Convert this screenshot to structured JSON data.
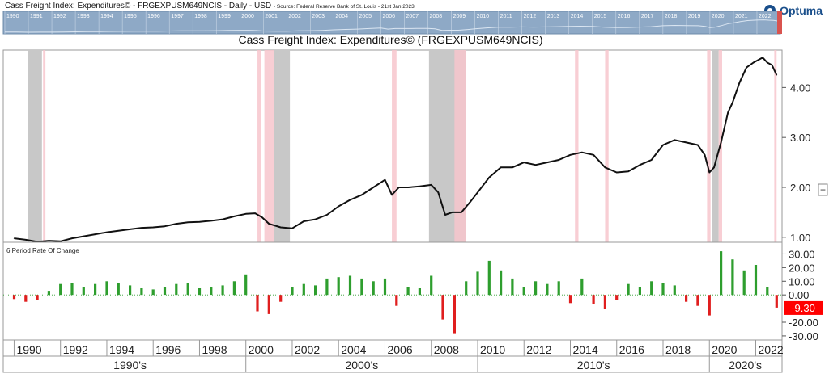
{
  "header": {
    "title": "Cass Freight Index: Expenditures© - FRGEXPUSM649NCIS - Daily - USD",
    "source": "- Source: Federal Reserve Bank of St. Louis - 21st Jan 2023"
  },
  "logo": {
    "text": "Optuma"
  },
  "plus_label": "+",
  "colors": {
    "line": "#111111",
    "up_bar": "#2e9e2e",
    "down_bar": "#e01e1e",
    "recession_gray": "#c8c8c8",
    "recession_pink": "#f7c6cc",
    "overview_bg": "#8ea9c6",
    "last_value_bg": "#ff0000"
  },
  "chart_data": [
    {
      "type": "line",
      "title": "Cass Freight Index: Expenditures© (FRGEXPUSM649NCIS)",
      "yticks": [
        "1.00",
        "2.00",
        "3.00",
        "4.00"
      ],
      "ylim": [
        0.9,
        4.75
      ],
      "xlim": [
        1989.6,
        2023.1
      ],
      "grid": false,
      "series": [
        {
          "x": [
            1990.0,
            1990.5,
            1991.0,
            1991.5,
            1992.0,
            1992.5,
            1993.0,
            1993.5,
            1994.0,
            1994.5,
            1995.0,
            1995.5,
            1996.0,
            1996.5,
            1997.0,
            1997.5,
            1998.0,
            1998.5,
            1999.0,
            1999.5,
            2000.0,
            2000.4,
            2000.7,
            2001.0,
            2001.5,
            2002.0,
            2002.5,
            2003.0,
            2003.5,
            2004.0,
            2004.5,
            2005.0,
            2005.5,
            2006.0,
            2006.3,
            2006.6,
            2007.0,
            2007.5,
            2008.0,
            2008.3,
            2008.6,
            2008.9,
            2009.3,
            2009.7,
            2010.0,
            2010.5,
            2011.0,
            2011.5,
            2012.0,
            2012.5,
            2013.0,
            2013.5,
            2014.0,
            2014.5,
            2015.0,
            2015.5,
            2016.0,
            2016.5,
            2017.0,
            2017.5,
            2018.0,
            2018.5,
            2019.0,
            2019.5,
            2019.8,
            2020.0,
            2020.2,
            2020.5,
            2020.8,
            2021.0,
            2021.3,
            2021.6,
            2021.9,
            2022.1,
            2022.3,
            2022.5,
            2022.7,
            2022.9
          ],
          "y": [
            0.98,
            0.95,
            0.91,
            0.93,
            0.92,
            0.98,
            1.02,
            1.06,
            1.1,
            1.13,
            1.16,
            1.19,
            1.2,
            1.22,
            1.27,
            1.3,
            1.31,
            1.33,
            1.36,
            1.42,
            1.47,
            1.48,
            1.4,
            1.27,
            1.2,
            1.18,
            1.32,
            1.36,
            1.45,
            1.62,
            1.75,
            1.85,
            2.0,
            2.15,
            1.85,
            2.0,
            2.0,
            2.02,
            2.05,
            1.9,
            1.45,
            1.5,
            1.5,
            1.72,
            1.9,
            2.2,
            2.4,
            2.4,
            2.5,
            2.45,
            2.5,
            2.55,
            2.65,
            2.7,
            2.65,
            2.4,
            2.3,
            2.32,
            2.45,
            2.55,
            2.85,
            2.95,
            2.9,
            2.85,
            2.65,
            2.3,
            2.4,
            2.9,
            3.5,
            3.7,
            4.1,
            4.4,
            4.5,
            4.55,
            4.6,
            4.5,
            4.45,
            4.25
          ]
        }
      ]
    },
    {
      "type": "bar",
      "title": "6 Period Rate Of Change",
      "yticks": [
        "30.00",
        "20.00",
        "10.00",
        "0.00",
        "-20.00",
        "-30.00"
      ],
      "ylim": [
        -33,
        35
      ],
      "last_value": "-9.30",
      "series": [
        {
          "x": [
            1990.0,
            1990.5,
            1991.0,
            1991.5,
            1992.0,
            1992.5,
            1993.0,
            1993.5,
            1994.0,
            1994.5,
            1995.0,
            1995.5,
            1996.0,
            1996.5,
            1997.0,
            1997.5,
            1998.0,
            1998.5,
            1999.0,
            1999.5,
            2000.0,
            2000.5,
            2001.0,
            2001.5,
            2002.0,
            2002.5,
            2003.0,
            2003.5,
            2004.0,
            2004.5,
            2005.0,
            2005.5,
            2006.0,
            2006.5,
            2007.0,
            2007.5,
            2008.0,
            2008.5,
            2009.0,
            2009.5,
            2010.0,
            2010.5,
            2011.0,
            2011.5,
            2012.0,
            2012.5,
            2013.0,
            2013.5,
            2014.0,
            2014.5,
            2015.0,
            2015.5,
            2016.0,
            2016.5,
            2017.0,
            2017.5,
            2018.0,
            2018.5,
            2019.0,
            2019.5,
            2020.0,
            2020.5,
            2021.0,
            2021.5,
            2022.0,
            2022.5,
            2022.9
          ],
          "y": [
            -3,
            -5,
            -4,
            3,
            8,
            9,
            6,
            8,
            10,
            9,
            7,
            5,
            4,
            6,
            8,
            9,
            5,
            6,
            7,
            10,
            15,
            -12,
            -14,
            -5,
            6,
            8,
            7,
            12,
            13,
            14,
            12,
            10,
            12,
            -8,
            6,
            5,
            14,
            -18,
            -28,
            10,
            17,
            25,
            18,
            12,
            6,
            10,
            8,
            10,
            -6,
            12,
            -7,
            -10,
            -4,
            8,
            6,
            10,
            9,
            7,
            -5,
            -8,
            -15,
            32,
            26,
            18,
            22,
            6,
            -9.3
          ]
        }
      ]
    }
  ],
  "recessions": {
    "gray": [
      [
        1990.6,
        1991.2
      ],
      [
        2001.2,
        2001.9
      ],
      [
        2007.9,
        2009.5
      ],
      [
        2020.1,
        2020.4
      ]
    ],
    "pink": [
      [
        1991.25,
        1991.35
      ],
      [
        2000.5,
        2000.65
      ],
      [
        2000.8,
        2001.2
      ],
      [
        2006.3,
        2006.5
      ],
      [
        2009.0,
        2009.5
      ],
      [
        2014.2,
        2014.35
      ],
      [
        2015.5,
        2015.65
      ],
      [
        2019.9,
        2020.05
      ],
      [
        2020.4,
        2020.55
      ],
      [
        2022.8,
        2022.9
      ]
    ]
  },
  "overview": {
    "years": [
      "1990",
      "1991",
      "1992",
      "1993",
      "1994",
      "1995",
      "1996",
      "1997",
      "1998",
      "1999",
      "2000",
      "2001",
      "2002",
      "2003",
      "2004",
      "2005",
      "2006",
      "2007",
      "2008",
      "2009",
      "2010",
      "2011",
      "2012",
      "2013",
      "2014",
      "2015",
      "2016",
      "2017",
      "2018",
      "2019",
      "2020",
      "2021",
      "2022"
    ]
  },
  "x_axis": {
    "years": [
      "1990",
      "1992",
      "1994",
      "1996",
      "1998",
      "2000",
      "2002",
      "2004",
      "2006",
      "2008",
      "2010",
      "2012",
      "2014",
      "2016",
      "2018",
      "2020",
      "2022"
    ],
    "decades": [
      "1990's",
      "2000's",
      "2010's",
      "2020's"
    ]
  }
}
